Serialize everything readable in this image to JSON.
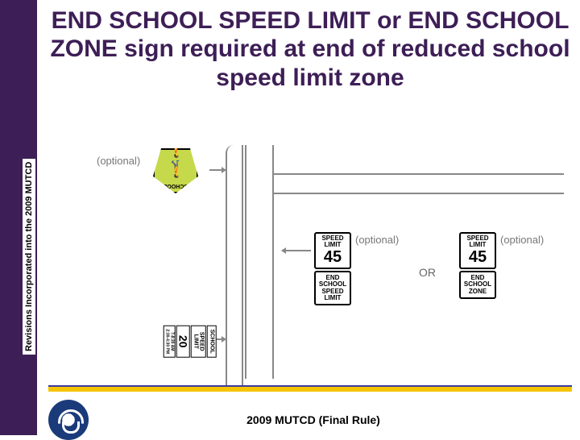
{
  "colors": {
    "purple": "#3d1e56",
    "yellow": "#f5c400",
    "blue_rule": "#3b3ba0",
    "school_sign_green": "#c5d94a",
    "gray": "#888888",
    "text_gray": "#777777",
    "logo_blue": "#1a3a7a",
    "background": "#ffffff"
  },
  "sidebar": {
    "vertical_label": "Revisions Incorporated into the 2009 MUTCD"
  },
  "title": "END SCHOOL SPEED LIMIT or END SCHOOL ZONE sign required at end of reduced school speed limit zone",
  "diagram": {
    "optional_label": "(optional)",
    "school_pentagon": {
      "label": "SCHOOL",
      "icon": "two-walkers"
    },
    "school_speed_limit_sign": {
      "top": "SCHOOL",
      "mid": "SPEED LIMIT",
      "value": "20",
      "times_line1": "7-8:30 AM",
      "times_line2": "2:30-4:30 PM"
    },
    "or_label": "OR",
    "speed_limit_signs": {
      "label_top": "SPEED",
      "label_bottom": "LIMIT",
      "value": "45"
    },
    "end_sign_a": {
      "l1": "END",
      "l2": "SCHOOL",
      "l3": "SPEED",
      "l4": "LIMIT"
    },
    "end_sign_b": {
      "l1": "END",
      "l2": "SCHOOL",
      "l3": "ZONE"
    }
  },
  "footer": {
    "logo_name": "usdot-logo",
    "text": "2009 MUTCD (Final Rule)"
  }
}
